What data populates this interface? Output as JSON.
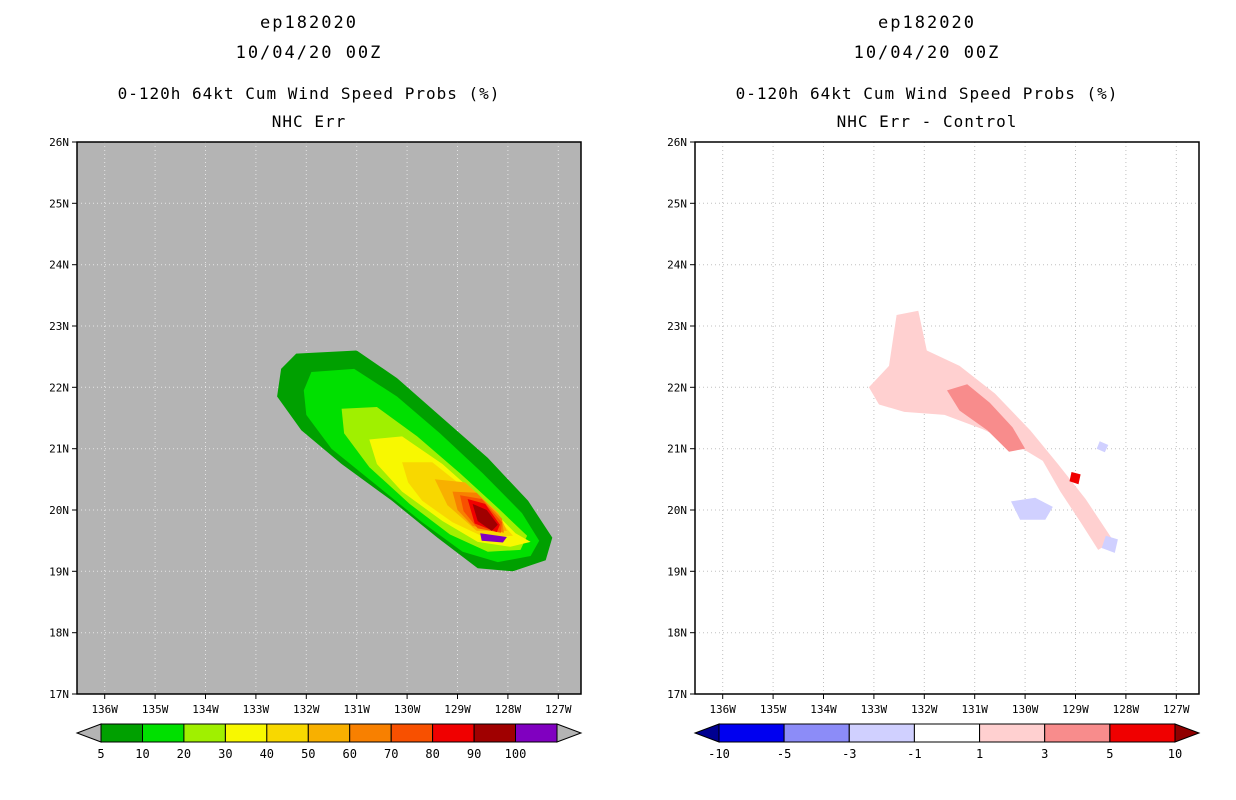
{
  "page": {
    "background": "#ffffff"
  },
  "chart_data": [
    {
      "type": "filled_contour_map",
      "title": "ep182020",
      "datetime": "10/04/20 00Z",
      "subtitle": "0-120h 64kt Cum Wind Speed Probs (%)",
      "panel_label": "NHC Err",
      "map_bg": "#b4b4b4",
      "grid_color": "#e6e6e6",
      "grid_on": true,
      "xlim": [
        -136.55,
        -126.55
      ],
      "ylim": [
        17,
        26
      ],
      "lon_ticks": [
        -136,
        -135,
        -134,
        -133,
        -132,
        -131,
        -130,
        -129,
        -128,
        -127
      ],
      "lon_tick_labels": [
        "136W",
        "135W",
        "134W",
        "133W",
        "132W",
        "131W",
        "130W",
        "129W",
        "128W",
        "127W"
      ],
      "lat_ticks": [
        26,
        25,
        24,
        23,
        22,
        21,
        20,
        19,
        18,
        17
      ],
      "lat_tick_labels": [
        "26N",
        "25N",
        "24N",
        "23N",
        "22N",
        "21N",
        "20N",
        "19N",
        "18N",
        "17N"
      ],
      "grid_lons": [
        -136,
        -135,
        -134,
        -133,
        -132,
        -131,
        -130,
        -129,
        -128,
        -127
      ],
      "grid_lats": [
        18,
        19,
        20,
        21,
        22,
        23,
        24,
        25
      ],
      "contours": [
        {
          "level": 5,
          "color": "#00a000",
          "polygon": [
            [
              -132.2,
              22.55
            ],
            [
              -131.0,
              22.6
            ],
            [
              -130.2,
              22.15
            ],
            [
              -129.3,
              21.5
            ],
            [
              -128.4,
              20.85
            ],
            [
              -127.6,
              20.15
            ],
            [
              -127.12,
              19.55
            ],
            [
              -127.25,
              19.18
            ],
            [
              -127.9,
              19.0
            ],
            [
              -128.6,
              19.05
            ],
            [
              -129.4,
              19.55
            ],
            [
              -130.3,
              20.15
            ],
            [
              -131.3,
              20.75
            ],
            [
              -132.1,
              21.3
            ],
            [
              -132.58,
              21.85
            ],
            [
              -132.5,
              22.3
            ]
          ]
        },
        {
          "level": 10,
          "color": "#00e000",
          "polygon": [
            [
              -131.9,
              22.25
            ],
            [
              -131.05,
              22.3
            ],
            [
              -130.2,
              21.85
            ],
            [
              -129.35,
              21.25
            ],
            [
              -128.5,
              20.6
            ],
            [
              -127.72,
              19.95
            ],
            [
              -127.38,
              19.5
            ],
            [
              -127.55,
              19.25
            ],
            [
              -128.2,
              19.15
            ],
            [
              -128.9,
              19.32
            ],
            [
              -129.7,
              19.8
            ],
            [
              -130.6,
              20.4
            ],
            [
              -131.5,
              21.0
            ],
            [
              -132.0,
              21.55
            ],
            [
              -132.05,
              21.95
            ]
          ]
        },
        {
          "level": 20,
          "color": "#a0f000",
          "polygon": [
            [
              -131.3,
              21.65
            ],
            [
              -130.6,
              21.68
            ],
            [
              -129.8,
              21.2
            ],
            [
              -128.95,
              20.6
            ],
            [
              -128.18,
              20.02
            ],
            [
              -127.62,
              19.58
            ],
            [
              -127.75,
              19.35
            ],
            [
              -128.4,
              19.32
            ],
            [
              -129.15,
              19.6
            ],
            [
              -129.95,
              20.1
            ],
            [
              -130.75,
              20.7
            ],
            [
              -131.25,
              21.25
            ]
          ]
        },
        {
          "level": 30,
          "color": "#f8f800",
          "polygon": [
            [
              -130.75,
              21.15
            ],
            [
              -130.1,
              21.2
            ],
            [
              -129.3,
              20.75
            ],
            [
              -128.55,
              20.2
            ],
            [
              -127.85,
              19.62
            ],
            [
              -127.55,
              19.48
            ],
            [
              -127.95,
              19.4
            ],
            [
              -128.6,
              19.48
            ],
            [
              -129.3,
              19.82
            ],
            [
              -130.1,
              20.3
            ],
            [
              -130.6,
              20.75
            ]
          ]
        },
        {
          "level": 40,
          "color": "#f8d800",
          "polygon": [
            [
              -130.1,
              20.78
            ],
            [
              -129.5,
              20.78
            ],
            [
              -128.8,
              20.32
            ],
            [
              -128.15,
              19.82
            ],
            [
              -127.9,
              19.58
            ],
            [
              -128.45,
              19.55
            ],
            [
              -129.1,
              19.8
            ],
            [
              -129.7,
              20.15
            ],
            [
              -129.98,
              20.45
            ]
          ]
        },
        {
          "level": 50,
          "color": "#f8b000",
          "polygon": [
            [
              -129.45,
              20.5
            ],
            [
              -128.85,
              20.45
            ],
            [
              -128.18,
              19.95
            ],
            [
              -128.02,
              19.66
            ],
            [
              -128.62,
              19.66
            ],
            [
              -129.2,
              20.08
            ]
          ]
        },
        {
          "level": 60,
          "color": "#f88000",
          "polygon": [
            [
              -129.1,
              20.3
            ],
            [
              -128.62,
              20.28
            ],
            [
              -128.12,
              19.86
            ],
            [
              -128.08,
              19.63
            ],
            [
              -128.7,
              19.74
            ],
            [
              -129.0,
              20.0
            ]
          ]
        },
        {
          "level": 70,
          "color": "#f85000",
          "polygon": [
            [
              -128.95,
              20.24
            ],
            [
              -128.52,
              20.18
            ],
            [
              -128.12,
              19.8
            ],
            [
              -128.14,
              19.63
            ],
            [
              -128.6,
              19.7
            ],
            [
              -128.88,
              19.98
            ]
          ]
        },
        {
          "level": 80,
          "color": "#f00000",
          "polygon": [
            [
              -128.8,
              20.18
            ],
            [
              -128.45,
              20.1
            ],
            [
              -128.16,
              19.76
            ],
            [
              -128.22,
              19.64
            ],
            [
              -128.66,
              19.78
            ]
          ]
        },
        {
          "level": 90,
          "color": "#a00000",
          "polygon": [
            [
              -128.7,
              20.1
            ],
            [
              -128.42,
              20.0
            ],
            [
              -128.2,
              19.76
            ],
            [
              -128.32,
              19.66
            ],
            [
              -128.6,
              19.82
            ]
          ]
        },
        {
          "level": 100,
          "color": "#8000c0",
          "polygon": [
            [
              -128.55,
              19.62
            ],
            [
              -128.02,
              19.56
            ],
            [
              -128.1,
              19.47
            ],
            [
              -128.52,
              19.5
            ]
          ]
        }
      ],
      "colorbar": {
        "arrow_left": "#b4b4b4",
        "arrow_right": "#b4b4b4",
        "boxes": [
          "#00a000",
          "#00e000",
          "#a0f000",
          "#f8f800",
          "#f8d800",
          "#f8b000",
          "#f88000",
          "#f85000",
          "#f00000",
          "#a00000",
          "#8000c0"
        ],
        "labels": [
          {
            "text": "5",
            "boundary": 0
          },
          {
            "text": "10",
            "boundary": 1
          },
          {
            "text": "20",
            "boundary": 2
          },
          {
            "text": "30",
            "boundary": 3
          },
          {
            "text": "40",
            "boundary": 4
          },
          {
            "text": "50",
            "boundary": 5
          },
          {
            "text": "60",
            "boundary": 6
          },
          {
            "text": "70",
            "boundary": 7
          },
          {
            "text": "80",
            "boundary": 8
          },
          {
            "text": "90",
            "boundary": 9
          },
          {
            "text": "100",
            "boundary": 10
          }
        ]
      }
    },
    {
      "type": "filled_contour_map",
      "title": "ep182020",
      "datetime": "10/04/20 00Z",
      "subtitle": "0-120h 64kt Cum Wind Speed Probs (%)",
      "panel_label": "NHC Err - Control",
      "map_bg": "#ffffff",
      "grid_color": "#c0c0c0",
      "grid_on": true,
      "xlim": [
        -136.55,
        -126.55
      ],
      "ylim": [
        17,
        26
      ],
      "lon_ticks": [
        -136,
        -135,
        -134,
        -133,
        -132,
        -131,
        -130,
        -129,
        -128,
        -127
      ],
      "lon_tick_labels": [
        "136W",
        "135W",
        "134W",
        "133W",
        "132W",
        "131W",
        "130W",
        "129W",
        "128W",
        "127W"
      ],
      "lat_ticks": [
        26,
        25,
        24,
        23,
        22,
        21,
        20,
        19,
        18,
        17
      ],
      "lat_tick_labels": [
        "26N",
        "25N",
        "24N",
        "23N",
        "22N",
        "21N",
        "20N",
        "19N",
        "18N",
        "17N"
      ],
      "grid_lons": [
        -136,
        -135,
        -134,
        -133,
        -132,
        -131,
        -130,
        -129,
        -128,
        -127
      ],
      "grid_lats": [
        18,
        19,
        20,
        21,
        22,
        23,
        24,
        25
      ],
      "contours": [
        {
          "level": 1,
          "color": "#ffd0d0",
          "polygon": [
            [
              -133.1,
              22.0
            ],
            [
              -132.7,
              22.35
            ],
            [
              -132.55,
              23.18
            ],
            [
              -132.12,
              23.25
            ],
            [
              -131.95,
              22.6
            ],
            [
              -131.3,
              22.35
            ],
            [
              -130.6,
              21.9
            ],
            [
              -129.9,
              21.3
            ],
            [
              -129.35,
              20.75
            ],
            [
              -128.8,
              20.18
            ],
            [
              -128.25,
              19.5
            ],
            [
              -128.55,
              19.35
            ],
            [
              -128.9,
              19.8
            ],
            [
              -129.3,
              20.3
            ],
            [
              -129.65,
              20.8
            ],
            [
              -130.15,
              21.05
            ],
            [
              -130.85,
              21.32
            ],
            [
              -131.6,
              21.55
            ],
            [
              -132.4,
              21.6
            ],
            [
              -132.9,
              21.72
            ]
          ]
        },
        {
          "level": 3,
          "color": "#f88c8c",
          "polygon": [
            [
              -131.55,
              21.95
            ],
            [
              -131.15,
              22.05
            ],
            [
              -130.7,
              21.75
            ],
            [
              -130.25,
              21.35
            ],
            [
              -130.0,
              21.0
            ],
            [
              -130.32,
              20.95
            ],
            [
              -130.75,
              21.3
            ],
            [
              -131.3,
              21.62
            ]
          ]
        },
        {
          "level": 5,
          "color": "#f00000",
          "polygon": [
            [
              -129.08,
              20.62
            ],
            [
              -128.9,
              20.58
            ],
            [
              -128.94,
              20.42
            ],
            [
              -129.12,
              20.47
            ]
          ]
        },
        {
          "level": -1,
          "color": "#d0d0ff",
          "polygon": [
            [
              -130.28,
              20.14
            ],
            [
              -129.8,
              20.2
            ],
            [
              -129.45,
              20.05
            ],
            [
              -129.6,
              19.84
            ],
            [
              -130.1,
              19.84
            ]
          ]
        },
        {
          "level": -1,
          "color": "#d0d0ff",
          "polygon": [
            [
              -128.4,
              19.58
            ],
            [
              -128.16,
              19.52
            ],
            [
              -128.22,
              19.3
            ],
            [
              -128.48,
              19.38
            ]
          ]
        },
        {
          "level": -1,
          "color": "#d0d0ff",
          "polygon": [
            [
              -128.52,
              21.12
            ],
            [
              -128.35,
              21.06
            ],
            [
              -128.42,
              20.94
            ],
            [
              -128.58,
              21.0
            ]
          ]
        }
      ],
      "colorbar": {
        "arrow_left": "#000090",
        "arrow_right": "#900000",
        "boxes": [
          "#0000f0",
          "#8c8cf8",
          "#d0d0ff",
          "#ffffff",
          "#ffd0d0",
          "#f88c8c",
          "#f00000"
        ],
        "labels": [
          {
            "text": "-10",
            "boundary": 0
          },
          {
            "text": "-5",
            "boundary": 1
          },
          {
            "text": "-3",
            "boundary": 2
          },
          {
            "text": "-1",
            "boundary": 3
          },
          {
            "text": "1",
            "boundary": 4
          },
          {
            "text": "3",
            "boundary": 5
          },
          {
            "text": "5",
            "boundary": 6
          },
          {
            "text": "10",
            "boundary": 7
          }
        ]
      }
    }
  ]
}
